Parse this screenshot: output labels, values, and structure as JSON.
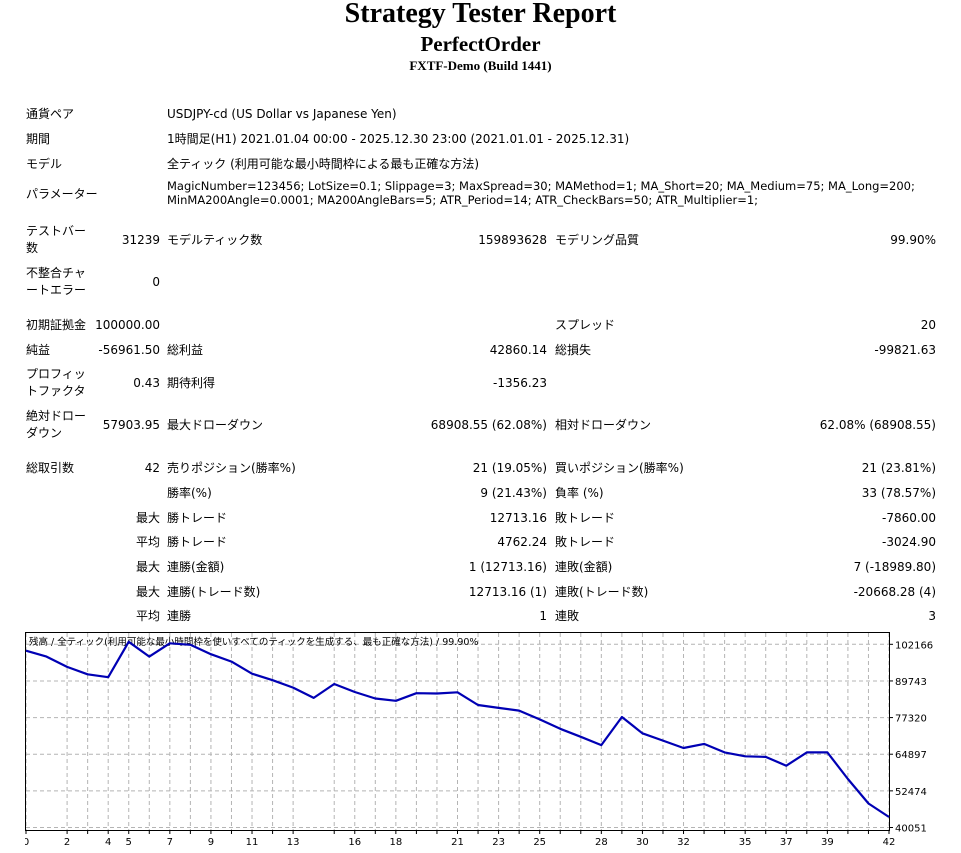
{
  "header": {
    "title": "Strategy Tester Report",
    "expert": "PerfectOrder",
    "server": "FXTF-Demo (Build 1441)"
  },
  "settings": {
    "symbol_label": "通貨ペア",
    "symbol_value": "USDJPY-cd (US Dollar vs Japanese Yen)",
    "period_label": "期間",
    "period_value": "1時間足(H1) 2021.01.04 00:00 - 2025.12.30 23:00 (2021.01.01 - 2025.12.31)",
    "model_label": "モデル",
    "model_value": "全ティック (利用可能な最小時間枠による最も正確な方法)",
    "params_label": "パラメーター",
    "params_line1": "MagicNumber=123456; LotSize=0.1; Slippage=3; MaxSpread=30; MAMethod=1; MA_Short=20; MA_Medium=75; MA_Long=200;",
    "params_line2": "MinMA200Angle=0.0001; MA200AngleBars=5; ATR_Period=14; ATR_CheckBars=50; ATR_Multiplier=1;"
  },
  "stats": {
    "bars_label": "テストバー数",
    "bars_value": "31239",
    "ticks_label": "モデルティック数",
    "ticks_value": "159893628",
    "quality_label": "モデリング品質",
    "quality_value": "99.90%",
    "mismatch_label": "不整合チャートエラー",
    "mismatch_value": "0",
    "deposit_label": "初期証拠金",
    "deposit_value": "100000.00",
    "spread_label": "スプレッド",
    "spread_value": "20",
    "net_label": "純益",
    "net_value": "-56961.50",
    "gross_profit_label": "総利益",
    "gross_profit_value": "42860.14",
    "gross_loss_label": "総損失",
    "gross_loss_value": "-99821.63",
    "pf_label": "プロフィットファクタ",
    "pf_value": "0.43",
    "expected_label": "期待利得",
    "expected_value": "-1356.23",
    "abs_dd_label": "絶対ドローダウン",
    "abs_dd_value": "57903.95",
    "max_dd_label": "最大ドローダウン",
    "max_dd_value": "68908.55 (62.08%)",
    "rel_dd_label": "相対ドローダウン",
    "rel_dd_value": "62.08% (68908.55)",
    "trades_label": "総取引数",
    "trades_value": "42",
    "short_label": "売りポジション(勝率%)",
    "short_value": "21 (19.05%)",
    "long_label": "買いポジション(勝率%)",
    "long_value": "21 (23.81%)",
    "win_rate_label": "勝率(%)",
    "win_rate_value": "9 (21.43%)",
    "loss_rate_label": "負率 (%)",
    "loss_rate_value": "33 (78.57%)",
    "max_prefix": "最大",
    "avg_prefix": "平均",
    "largest_win_label": "勝トレード",
    "largest_win_value": "12713.16",
    "largest_loss_label": "敗トレード",
    "largest_loss_value": "-7860.00",
    "avg_win_label": "勝トレード",
    "avg_win_value": "4762.24",
    "avg_loss_label": "敗トレード",
    "avg_loss_value": "-3024.90",
    "max_consec_win_money_label": "連勝(金額)",
    "max_consec_win_money_value": "1 (12713.16)",
    "max_consec_loss_money_label": "連敗(金額)",
    "max_consec_loss_money_value": "7 (-18989.80)",
    "max_consec_win_trades_label": "連勝(トレード数)",
    "max_consec_win_trades_value": "12713.16 (1)",
    "max_consec_loss_trades_label": "連敗(トレード数)",
    "max_consec_loss_trades_value": "-20668.28 (4)",
    "avg_consec_win_label": "連勝",
    "avg_consec_win_value": "1",
    "avg_consec_loss_label": "連敗",
    "avg_consec_loss_value": "3"
  },
  "chart_data": {
    "type": "line",
    "title": "残高 / 全ティック(利用可能な最小時間枠を使いすべてのティックを生成する、最も正確な方法) / 99.90%",
    "line_color": "#0000b4",
    "grid": true,
    "x_ticks": [
      "0",
      "2",
      "3",
      "4",
      "5",
      "6",
      "7",
      "8",
      "9",
      "10",
      "11",
      "12",
      "13",
      "15",
      "16",
      "17",
      "18",
      "19",
      "20",
      "21",
      "22",
      "23",
      "24",
      "25",
      "26",
      "27",
      "28",
      "29",
      "30",
      "31",
      "32",
      "33",
      "34",
      "35",
      "36",
      "37",
      "38",
      "39",
      "40",
      "41",
      "42"
    ],
    "x_tick_values": [
      0,
      2,
      3,
      4,
      5,
      6,
      7,
      8,
      9,
      10,
      11,
      12,
      13,
      15,
      16,
      17,
      18,
      19,
      20,
      21,
      22,
      23,
      24,
      25,
      26,
      27,
      28,
      29,
      30,
      31,
      32,
      33,
      34,
      35,
      36,
      37,
      38,
      39,
      40,
      41,
      42
    ],
    "x_tick_labels": [
      "0",
      "2",
      "4",
      "5",
      "7",
      "9",
      "11",
      "13",
      "16",
      "18",
      "21",
      "23",
      "25",
      "28",
      "30",
      "32",
      "35",
      "37",
      "39",
      "42"
    ],
    "x_tick_label_values": [
      0,
      2,
      4,
      5,
      7,
      9,
      11,
      13,
      16,
      18,
      21,
      23,
      25,
      28,
      30,
      32,
      35,
      37,
      39,
      42
    ],
    "y_ticks": [
      102166,
      89743,
      77320,
      64897,
      52474,
      40051
    ],
    "xlim": [
      0,
      42
    ],
    "ylim": [
      39200,
      106000
    ],
    "x": [
      0,
      1,
      2,
      3,
      4,
      5,
      6,
      7,
      8,
      9,
      10,
      11,
      12,
      13,
      14,
      15,
      16,
      17,
      18,
      19,
      20,
      21,
      22,
      23,
      24,
      25,
      26,
      27,
      28,
      29,
      30,
      31,
      32,
      33,
      34,
      35,
      36,
      37,
      38,
      39,
      40,
      41,
      42
    ],
    "y": [
      100000,
      98000,
      94500,
      92000,
      91000,
      103000,
      98000,
      102500,
      102000,
      98800,
      96300,
      92200,
      90000,
      87500,
      84000,
      88700,
      86000,
      83800,
      83000,
      85600,
      85500,
      85900,
      81600,
      80600,
      79700,
      76700,
      73500,
      70800,
      68000,
      77500,
      72000,
      69500,
      67000,
      68400,
      65500,
      64200,
      64000,
      61000,
      65500,
      65500,
      56500,
      48200,
      43600
    ]
  }
}
